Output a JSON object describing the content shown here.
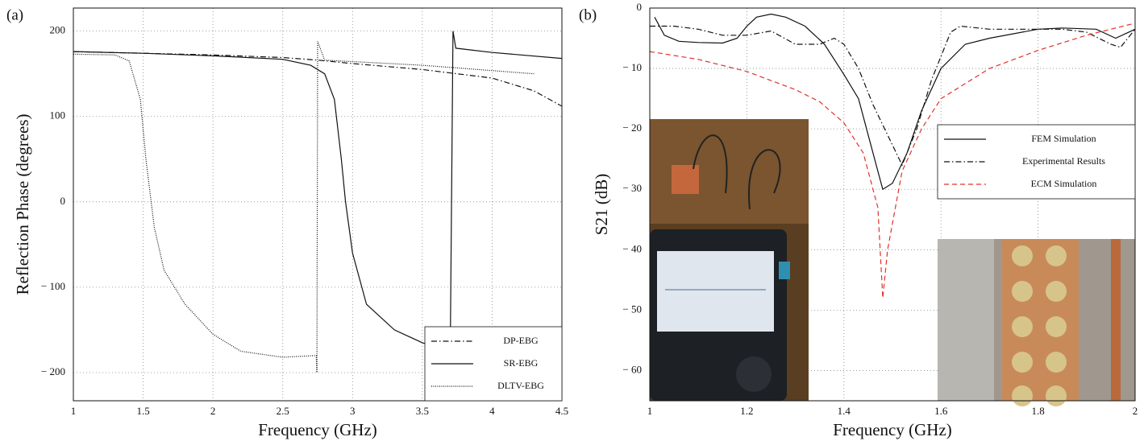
{
  "chart_data": [
    {
      "type": "line",
      "panel_label": "(a)",
      "xlabel": "Frequency (GHz)",
      "ylabel": "Reflection Phase (degrees)",
      "xlim": [
        1,
        4.5
      ],
      "xticks": [
        1,
        1.5,
        2,
        2.5,
        3,
        3.5,
        4,
        4.5
      ],
      "ylim": [
        -233,
        227
      ],
      "yticks": [
        {
          "value": -200,
          "label": "− 200"
        },
        {
          "value": -100,
          "label": "− 100"
        },
        0,
        100,
        200
      ],
      "grid": true,
      "legend": "lower right",
      "series": [
        {
          "name": "DP-EBG",
          "color": "#111111",
          "style": "dashdot",
          "x": [
            1,
            1.5,
            2,
            2.5,
            2.75,
            3,
            3.5,
            4,
            4.3,
            4.5
          ],
          "values": [
            176,
            174,
            172,
            169,
            166,
            162,
            155,
            145,
            130,
            112
          ]
        },
        {
          "name": "SR-EBG",
          "color": "#111111",
          "style": "solid",
          "x": [
            1,
            1.5,
            2,
            2.5,
            2.7,
            2.8,
            2.87,
            2.92,
            2.95,
            3.0,
            3.1,
            3.3,
            3.5,
            3.7,
            3.72,
            3.74,
            4,
            4.5
          ],
          "values": [
            176,
            174,
            171,
            167,
            160,
            150,
            120,
            50,
            0,
            -60,
            -120,
            -150,
            -165,
            -175,
            200,
            180,
            175,
            168
          ]
        },
        {
          "name": "DLTV-EBG",
          "color": "#111111",
          "style": "dotted",
          "x": [
            1,
            1.3,
            1.4,
            1.48,
            1.52,
            1.58,
            1.65,
            1.8,
            2.0,
            2.2,
            2.5,
            2.74,
            2.745,
            2.75,
            2.8,
            3.5,
            4.3
          ],
          "values": [
            173,
            172,
            165,
            120,
            50,
            -30,
            -80,
            -120,
            -155,
            -175,
            -182,
            -180,
            -200,
            188,
            166,
            160,
            150
          ]
        }
      ]
    },
    {
      "type": "line",
      "panel_label": "(b)",
      "xlabel": "Frequency (GHz)",
      "ylabel": "S21 (dB)",
      "xlim": [
        1,
        2
      ],
      "xticks": [
        1,
        1.2,
        1.4,
        1.6,
        1.8,
        2
      ],
      "ylim": [
        -65,
        0
      ],
      "yticks": [
        0,
        {
          "value": -10,
          "label": "− 10"
        },
        {
          "value": -20,
          "label": "− 20"
        },
        {
          "value": -30,
          "label": "− 30"
        },
        {
          "value": -40,
          "label": "− 40"
        },
        {
          "value": -50,
          "label": "− 50"
        },
        {
          "value": -60,
          "label": "− 60"
        }
      ],
      "grid": true,
      "legend": "center right",
      "series": [
        {
          "name": "FEM Simulation",
          "color": "#111111",
          "style": "solid",
          "x": [
            1.01,
            1.03,
            1.06,
            1.1,
            1.15,
            1.18,
            1.2,
            1.22,
            1.25,
            1.28,
            1.32,
            1.36,
            1.4,
            1.43,
            1.45,
            1.47,
            1.48,
            1.5,
            1.53,
            1.56,
            1.6,
            1.65,
            1.7,
            1.8,
            1.85,
            1.92,
            1.96,
            2.0
          ],
          "values": [
            -1.5,
            -4.5,
            -5.5,
            -5.7,
            -5.8,
            -5,
            -3,
            -1.5,
            -1,
            -1.5,
            -3,
            -6,
            -11,
            -15,
            -21,
            -27,
            -30,
            -29,
            -24,
            -17,
            -10,
            -6,
            -5,
            -3.5,
            -3.3,
            -3.5,
            -5,
            -3.5
          ]
        },
        {
          "name": "Experimental  Results",
          "color": "#111111",
          "style": "dashdot",
          "x": [
            1.0,
            1.05,
            1.1,
            1.15,
            1.2,
            1.25,
            1.3,
            1.35,
            1.38,
            1.4,
            1.43,
            1.46,
            1.49,
            1.52,
            1.55,
            1.58,
            1.62,
            1.64,
            1.7,
            1.8,
            1.85,
            1.9,
            1.95,
            1.97,
            2.0
          ],
          "values": [
            -3,
            -3,
            -3.5,
            -4.5,
            -4.5,
            -3.8,
            -6,
            -6,
            -5,
            -6,
            -10,
            -16,
            -21,
            -26,
            -20,
            -12,
            -4,
            -3,
            -3.5,
            -3.5,
            -3.5,
            -4,
            -6,
            -6.5,
            -3.5
          ]
        },
        {
          "name": "ECM Simulation",
          "color": "#e0312b",
          "style": "dashed",
          "x": [
            1.0,
            1.1,
            1.2,
            1.3,
            1.35,
            1.4,
            1.44,
            1.47,
            1.48,
            1.49,
            1.52,
            1.56,
            1.6,
            1.7,
            1.8,
            1.9,
            2.0
          ],
          "values": [
            -7.2,
            -8.5,
            -10.5,
            -13.5,
            -15.5,
            -19,
            -24,
            -33,
            -48,
            -40,
            -27,
            -20,
            -15,
            -10,
            -7,
            -4.5,
            -2.5
          ]
        }
      ]
    }
  ]
}
